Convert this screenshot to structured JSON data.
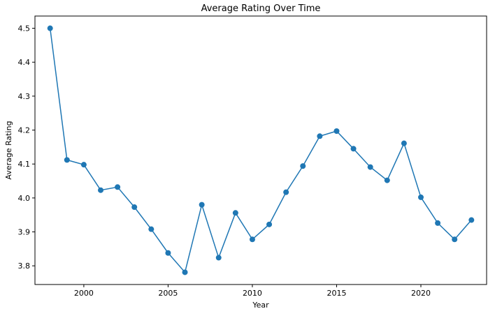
{
  "chart_data": {
    "type": "line",
    "title": "Average Rating Over Time",
    "xlabel": "Year",
    "ylabel": "Average Rating",
    "xlim": [
      1997.1,
      2023.9
    ],
    "ylim": [
      3.745,
      4.536
    ],
    "xticks": [
      2000,
      2005,
      2010,
      2015,
      2020
    ],
    "yticks": [
      3.8,
      3.9,
      4.0,
      4.1,
      4.2,
      4.3,
      4.4,
      4.5
    ],
    "grid": false,
    "series": [
      {
        "color": "#1f77b4",
        "marker": "circle",
        "x": [
          1998,
          1999,
          2000,
          2001,
          2002,
          2003,
          2004,
          2005,
          2006,
          2007,
          2008,
          2009,
          2010,
          2011,
          2012,
          2013,
          2014,
          2015,
          2016,
          2017,
          2018,
          2019,
          2020,
          2021,
          2022,
          2023
        ],
        "y": [
          4.5,
          4.112,
          4.098,
          4.023,
          4.032,
          3.973,
          3.908,
          3.838,
          3.781,
          3.98,
          3.824,
          3.956,
          3.878,
          3.922,
          4.017,
          4.094,
          4.182,
          4.197,
          4.145,
          4.091,
          4.052,
          4.161,
          4.002,
          3.926,
          3.878,
          3.935
        ]
      }
    ]
  }
}
